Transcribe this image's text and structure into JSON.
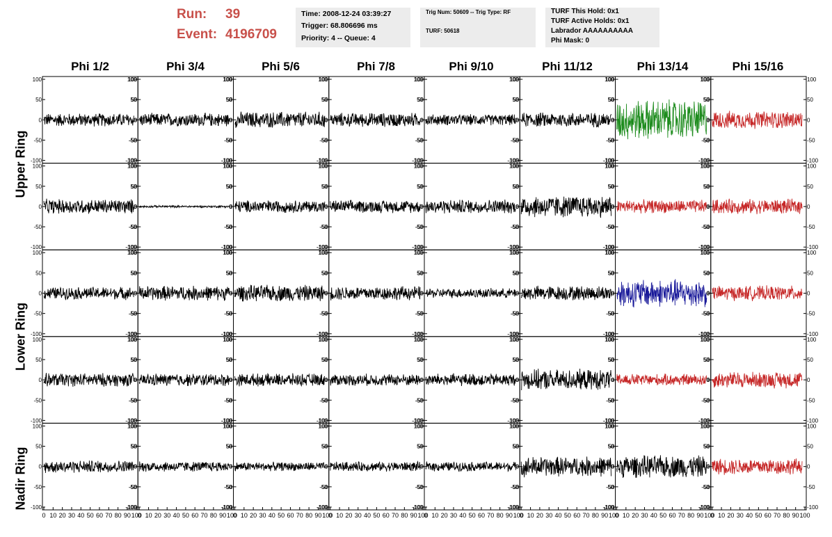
{
  "header": {
    "run_label": "Run:",
    "run_value": "39",
    "event_label": "Event:",
    "event_value": "4196709",
    "time": "Time: 2008-12-24 03:39:27",
    "trigger": "Trigger: 68.806696 ms",
    "priority": "Priority: 4 -- Queue: 4",
    "trig_num": "Trig Num: 50609 -- Trig Type: RF",
    "turf": "TURF: 50618",
    "turf_hold": "TURF This Hold: 0x1",
    "turf_active": "TURF Active Holds: 0x1",
    "labrador": "Labrador AAAAAAAAAA",
    "phi_mask": "Phi Mask: 0"
  },
  "colors": {
    "run_text": "#c8504a",
    "box_bg": "#ececec",
    "trace_default": "#000000",
    "trace_red": "#c62828",
    "trace_green": "#1e8c1e",
    "trace_blue": "#1a1a9a"
  },
  "column_labels": [
    "Phi 1/2",
    "Phi 3/4",
    "Phi 5/6",
    "Phi 7/8",
    "Phi 9/10",
    "Phi 11/12",
    "Phi 13/14",
    "Phi 15/16"
  ],
  "row_group_labels": [
    "Upper Ring",
    "Lower Ring",
    "Nadir Ring"
  ],
  "chart_data": {
    "type": "line",
    "rows": 5,
    "cols": 8,
    "xlim": [
      0,
      100
    ],
    "ylim": [
      -100,
      100
    ],
    "y_ticks": [
      "100",
      "50",
      "0",
      "-50",
      "-100"
    ],
    "x_ticks": [
      "0",
      "10",
      "20",
      "30",
      "40",
      "50",
      "60",
      "70",
      "80",
      "90",
      "100"
    ],
    "grid": false,
    "amplitudes": [
      [
        18,
        18,
        22,
        19,
        15,
        20,
        55,
        24
      ],
      [
        20,
        3,
        17,
        17,
        19,
        30,
        18,
        20
      ],
      [
        17,
        20,
        22,
        19,
        13,
        20,
        38,
        20
      ],
      [
        18,
        17,
        17,
        16,
        17,
        28,
        16,
        22
      ],
      [
        17,
        14,
        12,
        13,
        13,
        27,
        30,
        22
      ]
    ],
    "trace_colors": [
      [
        "default",
        "default",
        "default",
        "default",
        "default",
        "default",
        "green",
        "red"
      ],
      [
        "default",
        "default",
        "default",
        "default",
        "default",
        "default",
        "red",
        "red"
      ],
      [
        "default",
        "default",
        "default",
        "default",
        "default",
        "default",
        "blue",
        "red"
      ],
      [
        "default",
        "default",
        "default",
        "default",
        "default",
        "default",
        "red",
        "red"
      ],
      [
        "default",
        "default",
        "default",
        "default",
        "default",
        "default",
        "default",
        "red"
      ]
    ]
  }
}
